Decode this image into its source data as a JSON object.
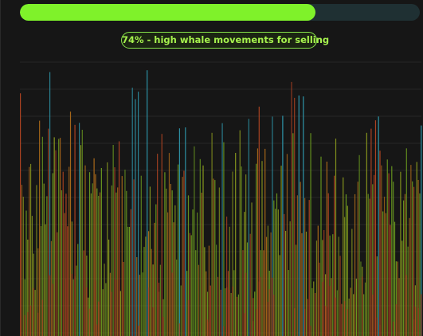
{
  "progress": {
    "value": 0.74,
    "fill_color": "#7ff22a",
    "track_color": "#1f3033"
  },
  "status": {
    "label": "74% - high whale movements for selling"
  },
  "chart": {
    "type": "bar",
    "gridlines": true,
    "axis_labels_visible": false,
    "series_colors": [
      "#2f9bb0",
      "#6b9b1f",
      "#8a9a1e",
      "#a8681a",
      "#b04422"
    ]
  }
}
